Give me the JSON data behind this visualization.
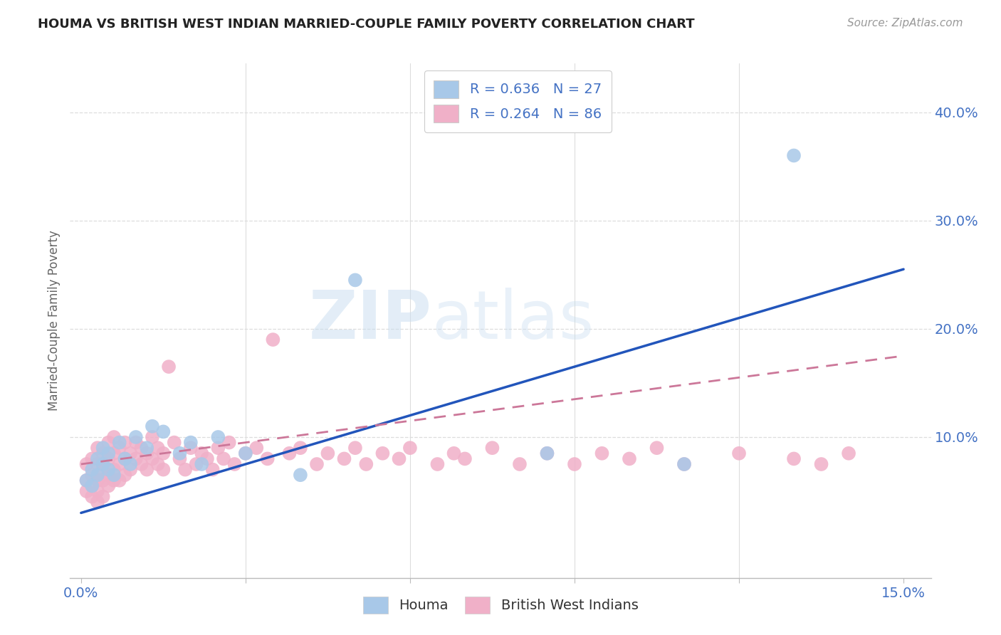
{
  "title": "HOUMA VS BRITISH WEST INDIAN MARRIED-COUPLE FAMILY POVERTY CORRELATION CHART",
  "source": "Source: ZipAtlas.com",
  "ylabel_label": "Married-Couple Family Poverty",
  "xlim": [
    -0.002,
    0.155
  ],
  "ylim": [
    -0.03,
    0.445
  ],
  "xtick_positions": [
    0.0,
    0.03,
    0.06,
    0.09,
    0.12,
    0.15
  ],
  "xtick_labels": [
    "0.0%",
    "",
    "",
    "",
    "",
    "15.0%"
  ],
  "ytick_positions": [
    0.1,
    0.2,
    0.3,
    0.4
  ],
  "ytick_labels": [
    "10.0%",
    "20.0%",
    "30.0%",
    "40.0%"
  ],
  "houma_color": "#a8c8e8",
  "bwi_color": "#f0b0c8",
  "houma_line_color": "#2255bb",
  "bwi_line_color": "#cc7799",
  "text_color": "#4472c4",
  "grid_color": "#dddddd",
  "houma_x": [
    0.001,
    0.002,
    0.002,
    0.003,
    0.003,
    0.004,
    0.004,
    0.005,
    0.005,
    0.006,
    0.007,
    0.008,
    0.009,
    0.01,
    0.012,
    0.013,
    0.015,
    0.018,
    0.02,
    0.022,
    0.025,
    0.03,
    0.04,
    0.05,
    0.085,
    0.11,
    0.13
  ],
  "houma_y": [
    0.06,
    0.07,
    0.055,
    0.065,
    0.08,
    0.075,
    0.09,
    0.085,
    0.07,
    0.065,
    0.095,
    0.08,
    0.075,
    0.1,
    0.09,
    0.11,
    0.105,
    0.085,
    0.095,
    0.075,
    0.1,
    0.085,
    0.065,
    0.245,
    0.085,
    0.075,
    0.36
  ],
  "bwi_x": [
    0.001,
    0.001,
    0.001,
    0.002,
    0.002,
    0.002,
    0.002,
    0.003,
    0.003,
    0.003,
    0.003,
    0.003,
    0.004,
    0.004,
    0.004,
    0.004,
    0.005,
    0.005,
    0.005,
    0.005,
    0.006,
    0.006,
    0.006,
    0.006,
    0.007,
    0.007,
    0.007,
    0.008,
    0.008,
    0.008,
    0.009,
    0.009,
    0.01,
    0.01,
    0.011,
    0.011,
    0.012,
    0.012,
    0.013,
    0.013,
    0.014,
    0.014,
    0.015,
    0.015,
    0.016,
    0.017,
    0.018,
    0.019,
    0.02,
    0.021,
    0.022,
    0.023,
    0.024,
    0.025,
    0.026,
    0.027,
    0.028,
    0.03,
    0.032,
    0.034,
    0.035,
    0.038,
    0.04,
    0.043,
    0.045,
    0.048,
    0.05,
    0.052,
    0.055,
    0.058,
    0.06,
    0.065,
    0.068,
    0.07,
    0.075,
    0.08,
    0.085,
    0.09,
    0.095,
    0.1,
    0.105,
    0.11,
    0.12,
    0.13,
    0.135,
    0.14
  ],
  "bwi_y": [
    0.075,
    0.06,
    0.05,
    0.08,
    0.065,
    0.055,
    0.045,
    0.09,
    0.075,
    0.06,
    0.05,
    0.04,
    0.085,
    0.07,
    0.06,
    0.045,
    0.095,
    0.08,
    0.065,
    0.055,
    0.1,
    0.085,
    0.07,
    0.06,
    0.09,
    0.075,
    0.06,
    0.095,
    0.08,
    0.065,
    0.085,
    0.07,
    0.095,
    0.08,
    0.09,
    0.075,
    0.085,
    0.07,
    0.1,
    0.08,
    0.09,
    0.075,
    0.085,
    0.07,
    0.165,
    0.095,
    0.08,
    0.07,
    0.09,
    0.075,
    0.085,
    0.08,
    0.07,
    0.09,
    0.08,
    0.095,
    0.075,
    0.085,
    0.09,
    0.08,
    0.19,
    0.085,
    0.09,
    0.075,
    0.085,
    0.08,
    0.09,
    0.075,
    0.085,
    0.08,
    0.09,
    0.075,
    0.085,
    0.08,
    0.09,
    0.075,
    0.085,
    0.075,
    0.085,
    0.08,
    0.09,
    0.075,
    0.085,
    0.08,
    0.075,
    0.085
  ]
}
